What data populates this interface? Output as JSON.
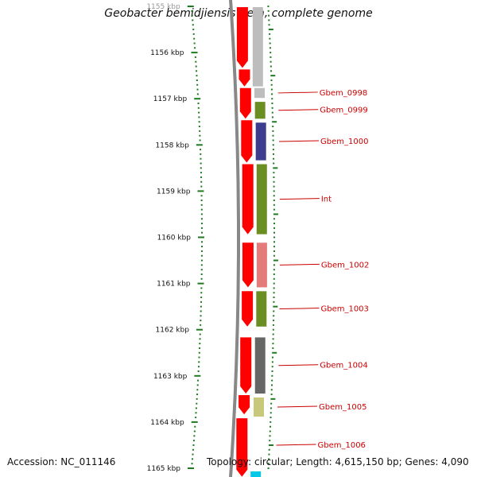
{
  "title": "Geobacter bemidjiensis Bem, complete genome",
  "footer": {
    "accession": "Accession: NC_011146",
    "stats": "Topology: circular; Length: 4,615,150 bp; Genes: 4,090"
  },
  "scale": {
    "unit": "kbp",
    "ticks": [
      "1155 kbp",
      "1156 kbp",
      "1157 kbp",
      "1158 kbp",
      "1159 kbp",
      "1160 kbp",
      "1161 kbp",
      "1162 kbp",
      "1163 kbp",
      "1164 kbp",
      "1165 kbp"
    ]
  },
  "colors": {
    "forward_strand": "#ff0000",
    "gray": "#bdbdbd",
    "olive": "#6b8e23",
    "navy": "#3d3d8f",
    "rose": "#e57a7a",
    "dark_gray": "#666666",
    "khaki": "#c8c87a",
    "cyan": "#00c8e6",
    "tick_green": "#1e7a1e",
    "label_red": "#cc0000"
  },
  "cds_forward": [
    {
      "start_kbp": 1155.0,
      "end_kbp": 1156.35
    },
    {
      "start_kbp": 1156.35,
      "end_kbp": 1156.75
    },
    {
      "start_kbp": 1156.75,
      "end_kbp": 1157.45
    },
    {
      "start_kbp": 1157.45,
      "end_kbp": 1158.4
    },
    {
      "start_kbp": 1158.4,
      "end_kbp": 1159.95
    },
    {
      "start_kbp": 1160.1,
      "end_kbp": 1161.1
    },
    {
      "start_kbp": 1161.15,
      "end_kbp": 1161.95
    },
    {
      "start_kbp": 1162.15,
      "end_kbp": 1163.4
    },
    {
      "start_kbp": 1163.4,
      "end_kbp": 1163.85
    },
    {
      "start_kbp": 1163.9,
      "end_kbp": 1165.2
    }
  ],
  "genes": [
    {
      "label": "",
      "color": "gray",
      "start_kbp": 1155.0,
      "end_kbp": 1156.75
    },
    {
      "label": "Gbem_0998",
      "color": "gray",
      "start_kbp": 1156.75,
      "end_kbp": 1157.0
    },
    {
      "label": "Gbem_0999",
      "color": "olive",
      "start_kbp": 1157.05,
      "end_kbp": 1157.45
    },
    {
      "label": "Gbem_1000",
      "color": "navy",
      "start_kbp": 1157.5,
      "end_kbp": 1158.35
    },
    {
      "label": "Int",
      "color": "olive",
      "start_kbp": 1158.4,
      "end_kbp": 1159.95
    },
    {
      "label": "Gbem_1002",
      "color": "rose",
      "start_kbp": 1160.1,
      "end_kbp": 1161.1
    },
    {
      "label": "Gbem_1003",
      "color": "olive",
      "start_kbp": 1161.15,
      "end_kbp": 1161.95
    },
    {
      "label": "Gbem_1004",
      "color": "dark_gray",
      "start_kbp": 1162.15,
      "end_kbp": 1163.4
    },
    {
      "label": "Gbem_1005",
      "color": "khaki",
      "start_kbp": 1163.45,
      "end_kbp": 1163.9
    },
    {
      "label": "Gbem_1006",
      "color": "cyan",
      "start_kbp": 1165.05,
      "end_kbp": 1165.3
    }
  ]
}
